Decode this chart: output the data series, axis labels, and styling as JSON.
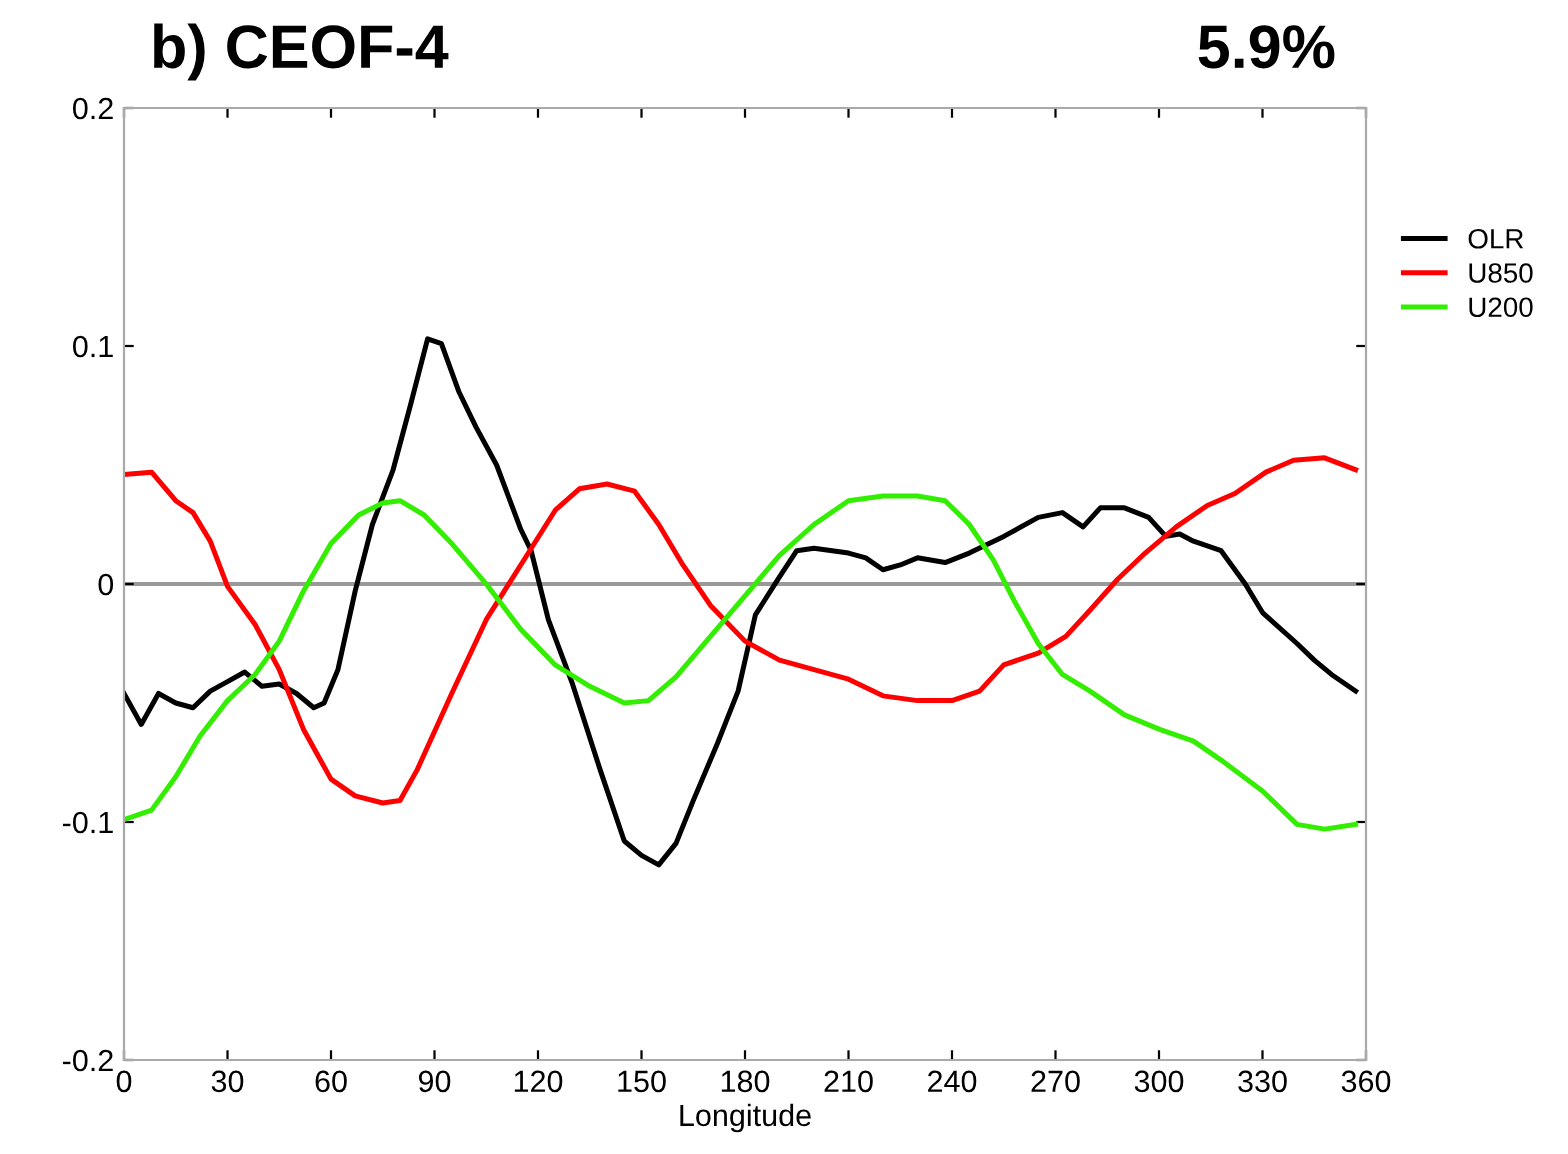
{
  "chart_data": {
    "type": "line",
    "title": "b) CEOF-4",
    "annotations": [
      "5.9%"
    ],
    "xlabel": "Longitude",
    "xlim": [
      0,
      360
    ],
    "xticks": [
      0,
      30,
      60,
      90,
      120,
      150,
      180,
      210,
      240,
      270,
      300,
      330,
      360
    ],
    "ylim": [
      -0.2,
      0.2
    ],
    "yticks": [
      -0.2,
      -0.1,
      0,
      0.1,
      0.2
    ],
    "grid": false,
    "legend": "right",
    "marker": "none",
    "line_style": "solid",
    "ref_lines": [
      {
        "axis": "y",
        "value": 0,
        "color": "#999999"
      }
    ],
    "series": [
      {
        "name": "OLR",
        "color": "#000000",
        "x": [
          0,
          5,
          10,
          15,
          20,
          25,
          30,
          35,
          40,
          45,
          50,
          55,
          58,
          62,
          67,
          72,
          78,
          83,
          88,
          92,
          97,
          102,
          108,
          115,
          118,
          123,
          130,
          138,
          145,
          150,
          155,
          160,
          165,
          172,
          178,
          183,
          190,
          195,
          200,
          210,
          215,
          220,
          225,
          230,
          238,
          245,
          255,
          265,
          272,
          278,
          283,
          290,
          297,
          302,
          306,
          310,
          318,
          325,
          330,
          340,
          345,
          350,
          357
        ],
        "values": [
          -0.046,
          -0.059,
          -0.046,
          -0.05,
          -0.052,
          -0.045,
          -0.041,
          -0.037,
          -0.043,
          -0.042,
          -0.046,
          -0.052,
          -0.05,
          -0.036,
          -0.003,
          0.025,
          0.048,
          0.075,
          0.103,
          0.101,
          0.081,
          0.066,
          0.05,
          0.023,
          0.014,
          -0.015,
          -0.042,
          -0.078,
          -0.108,
          -0.114,
          -0.118,
          -0.109,
          -0.091,
          -0.067,
          -0.045,
          -0.013,
          0.003,
          0.014,
          0.015,
          0.013,
          0.011,
          0.006,
          0.008,
          0.011,
          0.009,
          0.013,
          0.02,
          0.028,
          0.03,
          0.024,
          0.032,
          0.032,
          0.028,
          0.02,
          0.021,
          0.018,
          0.014,
          0,
          -0.012,
          -0.025,
          -0.032,
          -0.038,
          -0.045
        ]
      },
      {
        "name": "U850",
        "color": "#ff0000",
        "x": [
          0,
          8,
          15,
          20,
          25,
          30,
          38,
          45,
          52,
          60,
          67,
          75,
          80,
          85,
          95,
          105,
          115,
          125,
          132,
          140,
          148,
          155,
          162,
          170,
          180,
          190,
          200,
          210,
          220,
          230,
          240,
          248,
          255,
          265,
          273,
          280,
          288,
          296,
          305,
          314,
          322,
          331,
          339,
          348,
          357
        ],
        "values": [
          0.046,
          0.047,
          0.035,
          0.03,
          0.018,
          -0.001,
          -0.017,
          -0.036,
          -0.061,
          -0.082,
          -0.089,
          -0.092,
          -0.091,
          -0.078,
          -0.046,
          -0.015,
          0.008,
          0.031,
          0.04,
          0.042,
          0.039,
          0.025,
          0.008,
          -0.009,
          -0.024,
          -0.032,
          -0.036,
          -0.04,
          -0.047,
          -0.049,
          -0.049,
          -0.045,
          -0.034,
          -0.029,
          -0.022,
          -0.011,
          0.002,
          0.013,
          0.024,
          0.033,
          0.038,
          0.047,
          0.052,
          0.053,
          0.048
        ]
      },
      {
        "name": "U200",
        "color": "#33ee00",
        "x": [
          0,
          8,
          15,
          22,
          30,
          38,
          45,
          52,
          60,
          68,
          75,
          80,
          87,
          95,
          105,
          115,
          125,
          135,
          145,
          152,
          160,
          170,
          180,
          190,
          200,
          210,
          220,
          230,
          238,
          245,
          252,
          258,
          265,
          272,
          280,
          290,
          300,
          310,
          318,
          330,
          340,
          348,
          357
        ],
        "values": [
          -0.099,
          -0.095,
          -0.081,
          -0.064,
          -0.049,
          -0.038,
          -0.024,
          -0.003,
          0.017,
          0.029,
          0.034,
          0.035,
          0.029,
          0.017,
          0,
          -0.019,
          -0.034,
          -0.043,
          -0.05,
          -0.049,
          -0.039,
          -0.022,
          -0.005,
          0.012,
          0.025,
          0.035,
          0.037,
          0.037,
          0.035,
          0.025,
          0.01,
          -0.007,
          -0.025,
          -0.038,
          -0.045,
          -0.055,
          -0.061,
          -0.066,
          -0.074,
          -0.087,
          -0.101,
          -0.103,
          -0.101
        ]
      }
    ]
  }
}
